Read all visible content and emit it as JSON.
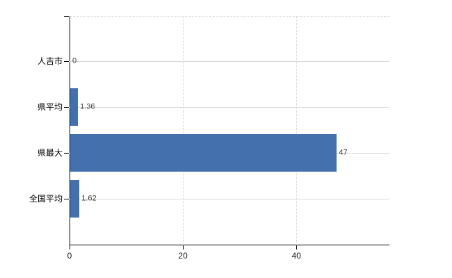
{
  "chart_data": {
    "type": "bar",
    "orientation": "horizontal",
    "title": "",
    "xlabel": "",
    "ylabel": "",
    "categories": [
      "人吉市",
      "県平均",
      "県最大",
      "全国平均"
    ],
    "values": [
      0,
      1.36,
      47,
      1.62
    ],
    "value_labels": [
      "0",
      "1.36",
      "47",
      "1.62"
    ],
    "x_ticks": [
      0,
      20,
      40
    ],
    "x_tick_labels": [
      "0",
      "20",
      "40"
    ],
    "xlim": [
      0,
      56.4
    ],
    "grid": true,
    "legend": false,
    "colors": {
      "bar": "#4471ae",
      "grid": "#d5dad5",
      "axis": "#000000",
      "text": "#000000",
      "background": "#ffffff"
    }
  }
}
